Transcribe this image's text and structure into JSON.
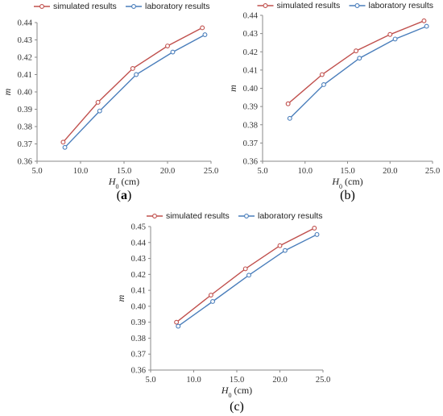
{
  "colors": {
    "simulated": "#c0504d",
    "laboratory": "#4a7ebb"
  },
  "chart_data": [
    {
      "id": "a",
      "type": "line",
      "panel_label": "a",
      "xlabel": "H",
      "xlabel_sub": "0",
      "xlabel_unit": "(cm)",
      "ylabel": "m",
      "xlim": [
        5.0,
        25.0
      ],
      "ylim": [
        0.36,
        0.44
      ],
      "xticks": [
        "5.0",
        "10.0",
        "15.0",
        "20.0",
        "25.0"
      ],
      "yticks": [
        "0.36",
        "0.37",
        "0.38",
        "0.39",
        "0.40",
        "0.41",
        "0.42",
        "0.43",
        "0.44"
      ],
      "legend": "top",
      "series": [
        {
          "name": "simulated results",
          "color": "#c0504d",
          "x": [
            8,
            12,
            16,
            20,
            24
          ],
          "y": [
            0.371,
            0.394,
            0.4135,
            0.4265,
            0.437
          ]
        },
        {
          "name": "laboratory results",
          "color": "#4a7ebb",
          "x": [
            8.2,
            12.2,
            16.4,
            20.6,
            24.3
          ],
          "y": [
            0.368,
            0.389,
            0.41,
            0.423,
            0.433
          ]
        }
      ]
    },
    {
      "id": "b",
      "type": "line",
      "panel_label": "b",
      "xlabel": "H",
      "xlabel_sub": "0",
      "xlabel_unit": "(cm)",
      "ylabel": "m",
      "xlim": [
        5.0,
        25.0
      ],
      "ylim": [
        0.36,
        0.44
      ],
      "xticks": [
        "5.0",
        "10.0",
        "15.0",
        "20.0",
        "25.0"
      ],
      "yticks": [
        "0.36",
        "0.37",
        "0.38",
        "0.39",
        "0.40",
        "0.41",
        "0.42",
        "0.43",
        "0.44"
      ],
      "legend": "top",
      "series": [
        {
          "name": "simulated results",
          "color": "#c0504d",
          "x": [
            8,
            12,
            16,
            20,
            24
          ],
          "y": [
            0.3915,
            0.4075,
            0.4205,
            0.4295,
            0.437
          ]
        },
        {
          "name": "laboratory results",
          "color": "#4a7ebb",
          "x": [
            8.2,
            12.2,
            16.4,
            20.6,
            24.3
          ],
          "y": [
            0.3835,
            0.402,
            0.4165,
            0.427,
            0.434
          ]
        }
      ]
    },
    {
      "id": "c",
      "type": "line",
      "panel_label": "c",
      "xlabel": "H",
      "xlabel_sub": "0",
      "xlabel_unit": "(cm)",
      "ylabel": "m",
      "xlim": [
        5.0,
        25.0
      ],
      "ylim": [
        0.36,
        0.45
      ],
      "xticks": [
        "5.0",
        "10.0",
        "15.0",
        "20.0",
        "25.0"
      ],
      "yticks": [
        "0.36",
        "0.37",
        "0.38",
        "0.39",
        "0.40",
        "0.41",
        "0.42",
        "0.43",
        "0.44",
        "0.45"
      ],
      "legend": "top",
      "series": [
        {
          "name": "simulated results",
          "color": "#c0504d",
          "x": [
            8,
            12,
            16,
            20,
            24
          ],
          "y": [
            0.39,
            0.407,
            0.4235,
            0.438,
            0.449
          ]
        },
        {
          "name": "laboratory results",
          "color": "#4a7ebb",
          "x": [
            8.2,
            12.2,
            16.4,
            20.6,
            24.3
          ],
          "y": [
            0.3875,
            0.403,
            0.4195,
            0.435,
            0.445
          ]
        }
      ]
    }
  ]
}
